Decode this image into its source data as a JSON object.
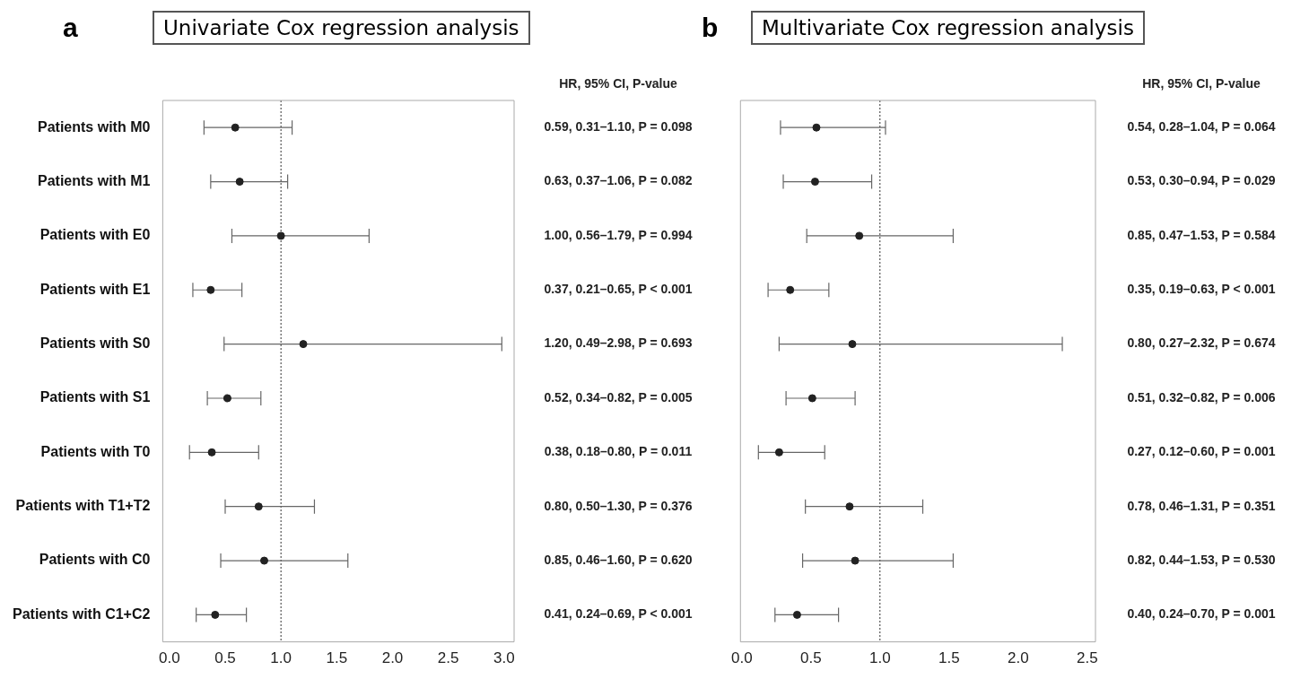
{
  "chart_data": [
    {
      "type": "scatter",
      "orientation": "horizontal",
      "title": "Univariate Cox regression analysis",
      "annotations": [
        "a",
        "HR, 95% CI, P-value"
      ],
      "marker": "circle",
      "color": "#222222",
      "categories": [
        "Patients with M0",
        "Patients with M1",
        "Patients with E0",
        "Patients with E1",
        "Patients with S0",
        "Patients with S1",
        "Patients with T0",
        "Patients with T1+T2",
        "Patients with C0",
        "Patients with C1+C2"
      ],
      "values": [
        0.59,
        0.63,
        1.0,
        0.37,
        1.2,
        0.52,
        0.38,
        0.8,
        0.85,
        0.41
      ],
      "errors": [
        [
          0.31,
          1.1
        ],
        [
          0.37,
          1.06
        ],
        [
          0.56,
          1.79
        ],
        [
          0.21,
          0.65
        ],
        [
          0.49,
          2.98
        ],
        [
          0.34,
          0.82
        ],
        [
          0.18,
          0.8
        ],
        [
          0.5,
          1.3
        ],
        [
          0.46,
          1.6
        ],
        [
          0.24,
          0.69
        ]
      ],
      "value_labels": [
        "0.59, 0.31–1.10, P = 0.098",
        "0.63, 0.37–1.06, P = 0.082",
        "1.00, 0.56–1.79, P = 0.994",
        "0.37, 0.21–0.65, P < 0.001",
        "1.20, 0.49–2.98, P = 0.693",
        "0.52, 0.34–0.82, P = 0.005",
        "0.38, 0.18–0.80, P = 0.011",
        "0.80, 0.50–1.30, P = 0.376",
        "0.85, 0.46–1.60, P = 0.620",
        "0.41, 0.24–0.69, P < 0.001"
      ],
      "xlim": [
        -0.06,
        3.09
      ],
      "xticks": [
        {
          "value": 0,
          "label": "0.0"
        },
        0.5,
        {
          "value": 1,
          "label": "1.0"
        },
        1.5,
        {
          "value": 2,
          "label": "2.0"
        },
        2.5,
        {
          "value": 3,
          "label": "3.0"
        }
      ],
      "ref_lines": [
        {
          "axis": "x",
          "value": 1,
          "line_style": "dotted",
          "color": "#333333"
        }
      ]
    },
    {
      "type": "scatter",
      "orientation": "horizontal",
      "title": "Multivariate Cox regression analysis",
      "annotations": [
        "b",
        "HR, 95% CI, P-value"
      ],
      "marker": "circle",
      "color": "#222222",
      "tick_labels": "x",
      "categories": [
        null,
        null,
        null,
        null,
        null,
        null,
        null,
        null,
        null,
        null
      ],
      "values": [
        0.54,
        0.53,
        0.85,
        0.35,
        0.8,
        0.51,
        0.27,
        0.78,
        0.82,
        0.4
      ],
      "errors": [
        [
          0.28,
          1.04
        ],
        [
          0.3,
          0.94
        ],
        [
          0.47,
          1.53
        ],
        [
          0.19,
          0.63
        ],
        [
          0.27,
          2.32
        ],
        [
          0.32,
          0.82
        ],
        [
          0.12,
          0.6
        ],
        [
          0.46,
          1.31
        ],
        [
          0.44,
          1.53
        ],
        [
          0.24,
          0.7
        ]
      ],
      "value_labels": [
        "0.54, 0.28–1.04, P = 0.064",
        "0.53, 0.30–0.94, P = 0.029",
        "0.85, 0.47–1.53, P = 0.584",
        "0.35, 0.19–0.63, P < 0.001",
        "0.80, 0.27–2.32, P = 0.674",
        "0.51, 0.32–0.82, P = 0.006",
        "0.27, 0.12–0.60, P = 0.001",
        "0.78, 0.46–1.31, P = 0.351",
        "0.82, 0.44–1.53, P = 0.530",
        "0.40, 0.24–0.70, P = 0.001"
      ],
      "xlim": [
        -0.01,
        2.56
      ],
      "xticks": [
        {
          "value": 0,
          "label": "0.0"
        },
        0.5,
        {
          "value": 1,
          "label": "1.0"
        },
        1.5,
        {
          "value": 2,
          "label": "2.0"
        },
        2.5
      ],
      "ref_lines": [
        {
          "axis": "x",
          "value": 1,
          "line_style": "dotted",
          "color": "#333333"
        }
      ]
    }
  ]
}
